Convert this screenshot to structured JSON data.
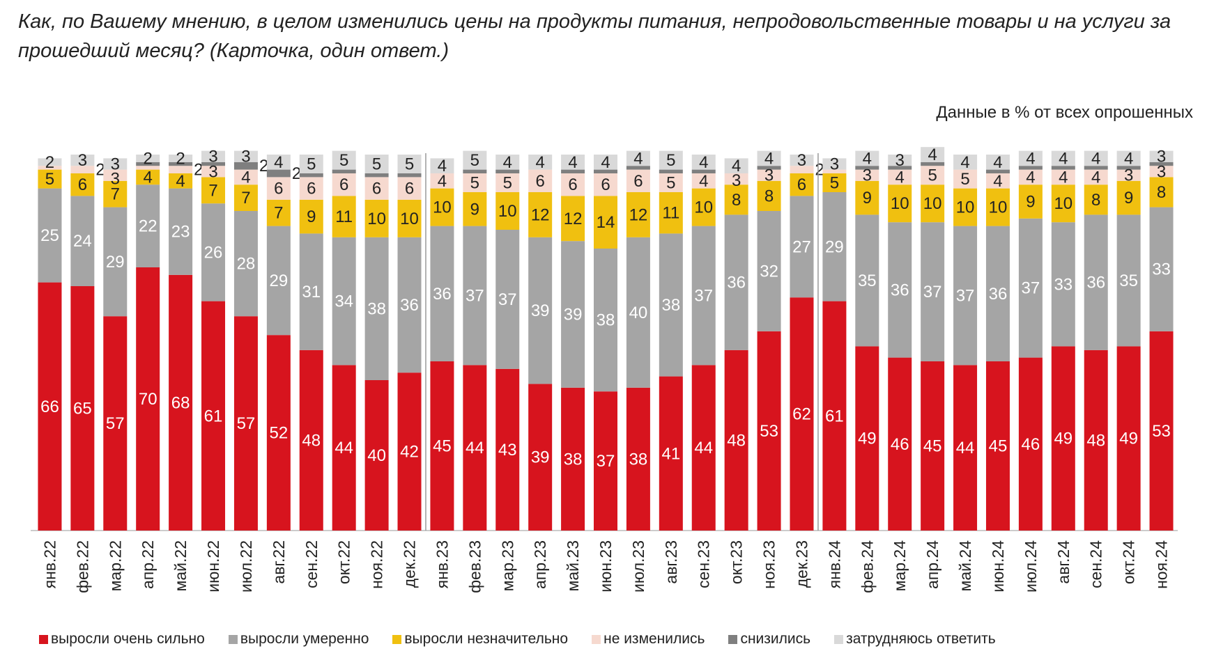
{
  "title": "Как, по Вашему мнению, в целом изменились цены на продукты питания, непродовольственные товары и на услуги за прошедший месяц? (Карточка, один ответ.)",
  "subtitle": "Данные в % от всех опрошенных",
  "chart_data": {
    "type": "bar",
    "stacked": true,
    "title": "Как, по Вашему мнению, в целом изменились цены на продукты питания, непродовольственные товары и на услуги за прошедший месяц? (Карточка, один ответ.)",
    "ylim": [
      0,
      100
    ],
    "grid": false,
    "legend_position": "bottom",
    "categories": [
      "янв.22",
      "фев.22",
      "мар.22",
      "апр.22",
      "май.22",
      "июн.22",
      "июл.22",
      "авг.22",
      "сен.22",
      "окт.22",
      "ноя.22",
      "дек.22",
      "янв.23",
      "фев.23",
      "мар.23",
      "апр.23",
      "май.23",
      "июн.23",
      "июл.23",
      "авг.23",
      "сен.23",
      "окт.23",
      "ноя.23",
      "дек.23",
      "янв.24",
      "фев.24",
      "мар.24",
      "апр.24",
      "май.24",
      "июн.24",
      "июл.24",
      "авг.24",
      "сен.24",
      "окт.24",
      "ноя.24"
    ],
    "series": [
      {
        "name": "выросли очень сильно",
        "color": "#d7141e",
        "values": [
          66,
          65,
          57,
          70,
          68,
          61,
          57,
          52,
          48,
          44,
          40,
          42,
          45,
          44,
          43,
          39,
          38,
          37,
          38,
          41,
          44,
          48,
          53,
          62,
          61,
          49,
          46,
          45,
          44,
          45,
          46,
          49,
          48,
          49,
          53
        ]
      },
      {
        "name": "выросли умеренно",
        "color": "#a5a5a5",
        "values": [
          25,
          24,
          29,
          22,
          23,
          26,
          28,
          29,
          31,
          34,
          38,
          36,
          36,
          37,
          37,
          39,
          39,
          38,
          40,
          38,
          37,
          36,
          32,
          27,
          29,
          35,
          36,
          37,
          37,
          36,
          37,
          33,
          36,
          35,
          33
        ]
      },
      {
        "name": "выросли незначительно",
        "color": "#f0c010",
        "values": [
          5,
          6,
          7,
          4,
          4,
          7,
          7,
          7,
          9,
          11,
          10,
          10,
          10,
          9,
          10,
          12,
          12,
          14,
          12,
          11,
          10,
          8,
          8,
          6,
          5,
          9,
          10,
          10,
          10,
          10,
          9,
          10,
          8,
          9,
          8
        ]
      },
      {
        "name": "не изменились",
        "color": "#f6d9cf",
        "values": [
          1,
          2,
          3,
          1,
          2,
          3,
          4,
          6,
          6,
          6,
          6,
          6,
          4,
          5,
          5,
          6,
          6,
          6,
          6,
          5,
          4,
          3,
          3,
          2,
          1,
          3,
          4,
          5,
          5,
          4,
          4,
          4,
          4,
          3,
          3
        ]
      },
      {
        "name": "снизились",
        "color": "#7f7f7f",
        "values": [
          0,
          0,
          0,
          1,
          1,
          1,
          2,
          2,
          1,
          1,
          1,
          1,
          0,
          1,
          1,
          0,
          1,
          1,
          1,
          1,
          1,
          0,
          1,
          0,
          0,
          1,
          1,
          1,
          0,
          1,
          1,
          1,
          1,
          1,
          1
        ]
      },
      {
        "name": "затрудняюсь ответить",
        "color": "#d9d9d9",
        "values": [
          2,
          3,
          3,
          2,
          2,
          3,
          3,
          4,
          5,
          5,
          5,
          5,
          4,
          5,
          4,
          4,
          4,
          4,
          4,
          5,
          4,
          4,
          4,
          3,
          3,
          4,
          3,
          4,
          4,
          4,
          4,
          4,
          4,
          4,
          3
        ]
      }
    ]
  }
}
